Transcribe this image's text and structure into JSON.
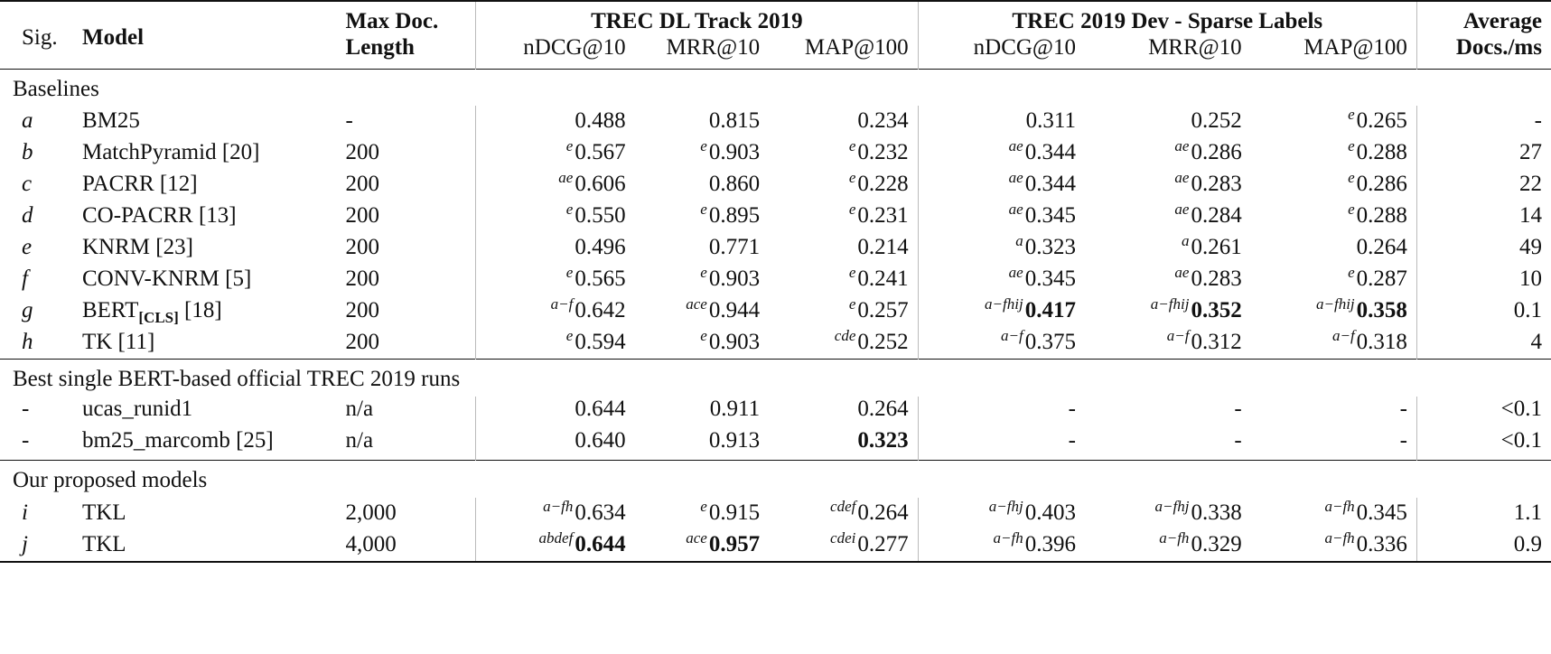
{
  "header": {
    "sig": "Sig.",
    "model": "Model",
    "maxdoc_line1": "Max Doc.",
    "maxdoc_line2": "Length",
    "group_dl": "TREC DL Track 2019",
    "group_dev": "TREC 2019 Dev - Sparse Labels",
    "avg_line1": "Average",
    "avg_line2": "Docs./ms",
    "metrics": [
      "nDCG@10",
      "MRR@10",
      "MAP@100",
      "nDCG@10",
      "MRR@10",
      "MAP@100"
    ]
  },
  "groups": {
    "baselines": "Baselines",
    "trec_runs": "Best single BERT-based official TREC 2019 runs",
    "proposed": "Our proposed models"
  },
  "rows": {
    "a": {
      "sig": "a",
      "model": "BM25",
      "len": "-",
      "v": [
        {
          "s": "",
          "v": "0.488"
        },
        {
          "s": "",
          "v": "0.815"
        },
        {
          "s": "",
          "v": "0.234"
        },
        {
          "s": "",
          "v": "0.311"
        },
        {
          "s": "",
          "v": "0.252"
        },
        {
          "s": "e",
          "v": "0.265"
        }
      ],
      "avg": "-"
    },
    "b": {
      "sig": "b",
      "model": "MatchPyramid [20]",
      "len": "200",
      "v": [
        {
          "s": "e",
          "v": "0.567"
        },
        {
          "s": "e",
          "v": "0.903"
        },
        {
          "s": "e",
          "v": "0.232"
        },
        {
          "s": "ae",
          "v": "0.344"
        },
        {
          "s": "ae",
          "v": "0.286"
        },
        {
          "s": "e",
          "v": "0.288"
        }
      ],
      "avg": "27"
    },
    "c": {
      "sig": "c",
      "model": "PACRR [12]",
      "len": "200",
      "v": [
        {
          "s": "ae",
          "v": "0.606"
        },
        {
          "s": "",
          "v": "0.860"
        },
        {
          "s": "e",
          "v": "0.228"
        },
        {
          "s": "ae",
          "v": "0.344"
        },
        {
          "s": "ae",
          "v": "0.283"
        },
        {
          "s": "e",
          "v": "0.286"
        }
      ],
      "avg": "22"
    },
    "d": {
      "sig": "d",
      "model": "CO-PACRR [13]",
      "len": "200",
      "v": [
        {
          "s": "e",
          "v": "0.550"
        },
        {
          "s": "e",
          "v": "0.895"
        },
        {
          "s": "e",
          "v": "0.231"
        },
        {
          "s": "ae",
          "v": "0.345"
        },
        {
          "s": "ae",
          "v": "0.284"
        },
        {
          "s": "e",
          "v": "0.288"
        }
      ],
      "avg": "14"
    },
    "e": {
      "sig": "e",
      "model": "KNRM [23]",
      "len": "200",
      "v": [
        {
          "s": "",
          "v": "0.496"
        },
        {
          "s": "",
          "v": "0.771"
        },
        {
          "s": "",
          "v": "0.214"
        },
        {
          "s": "a",
          "v": "0.323"
        },
        {
          "s": "a",
          "v": "0.261"
        },
        {
          "s": "",
          "v": "0.264"
        }
      ],
      "avg": "49"
    },
    "f": {
      "sig": "f",
      "model": "CONV-KNRM [5]",
      "len": "200",
      "v": [
        {
          "s": "e",
          "v": "0.565"
        },
        {
          "s": "e",
          "v": "0.903"
        },
        {
          "s": "e",
          "v": "0.241"
        },
        {
          "s": "ae",
          "v": "0.345"
        },
        {
          "s": "ae",
          "v": "0.283"
        },
        {
          "s": "e",
          "v": "0.287"
        }
      ],
      "avg": "10"
    },
    "g": {
      "sig": "g",
      "model": "BERT",
      "model_sub": "[CLS]",
      "model_ref": "[18]",
      "len": "200",
      "v": [
        {
          "s": "a−f",
          "v": "0.642"
        },
        {
          "s": "ace",
          "v": "0.944"
        },
        {
          "s": "e",
          "v": "0.257"
        },
        {
          "s": "a−fhij",
          "v": "0.417"
        },
        {
          "s": "a−fhij",
          "v": "0.352"
        },
        {
          "s": "a−fhij",
          "v": "0.358"
        }
      ],
      "avg": "0.1"
    },
    "h": {
      "sig": "h",
      "model": "TK [11]",
      "len": "200",
      "v": [
        {
          "s": "e",
          "v": "0.594"
        },
        {
          "s": "e",
          "v": "0.903"
        },
        {
          "s": "cde",
          "v": "0.252"
        },
        {
          "s": "a−f",
          "v": "0.375"
        },
        {
          "s": "a−f",
          "v": "0.312"
        },
        {
          "s": "a−f",
          "v": "0.318"
        }
      ],
      "avg": "4"
    },
    "r1": {
      "sig": "-",
      "model": "ucas_runid1",
      "len": "n/a",
      "v": [
        {
          "s": "",
          "v": "0.644"
        },
        {
          "s": "",
          "v": "0.911"
        },
        {
          "s": "",
          "v": "0.264"
        },
        {
          "s": "",
          "v": "-"
        },
        {
          "s": "",
          "v": "-"
        },
        {
          "s": "",
          "v": "-"
        }
      ],
      "avg": "<0.1"
    },
    "r2": {
      "sig": "-",
      "model": "bm25_marcomb [25]",
      "len": "n/a",
      "v": [
        {
          "s": "",
          "v": "0.640"
        },
        {
          "s": "",
          "v": "0.913"
        },
        {
          "s": "",
          "v": "0.323"
        },
        {
          "s": "",
          "v": "-"
        },
        {
          "s": "",
          "v": "-"
        },
        {
          "s": "",
          "v": "-"
        }
      ],
      "avg": "<0.1"
    },
    "i": {
      "sig": "i",
      "model": "TKL",
      "len": "2,000",
      "v": [
        {
          "s": "a−fh",
          "v": "0.634"
        },
        {
          "s": "e",
          "v": "0.915"
        },
        {
          "s": "cdef",
          "v": "0.264"
        },
        {
          "s": "a−fhj",
          "v": "0.403"
        },
        {
          "s": "a−fhj",
          "v": "0.338"
        },
        {
          "s": "a−fh",
          "v": "0.345"
        }
      ],
      "avg": "1.1"
    },
    "j": {
      "sig": "j",
      "model": "TKL",
      "len": "4,000",
      "v": [
        {
          "s": "abdef",
          "v": "0.644"
        },
        {
          "s": "ace",
          "v": "0.957"
        },
        {
          "s": "cdei",
          "v": "0.277"
        },
        {
          "s": "a−fh",
          "v": "0.396"
        },
        {
          "s": "a−fh",
          "v": "0.329"
        },
        {
          "s": "a−fh",
          "v": "0.336"
        }
      ],
      "avg": "0.9"
    }
  }
}
